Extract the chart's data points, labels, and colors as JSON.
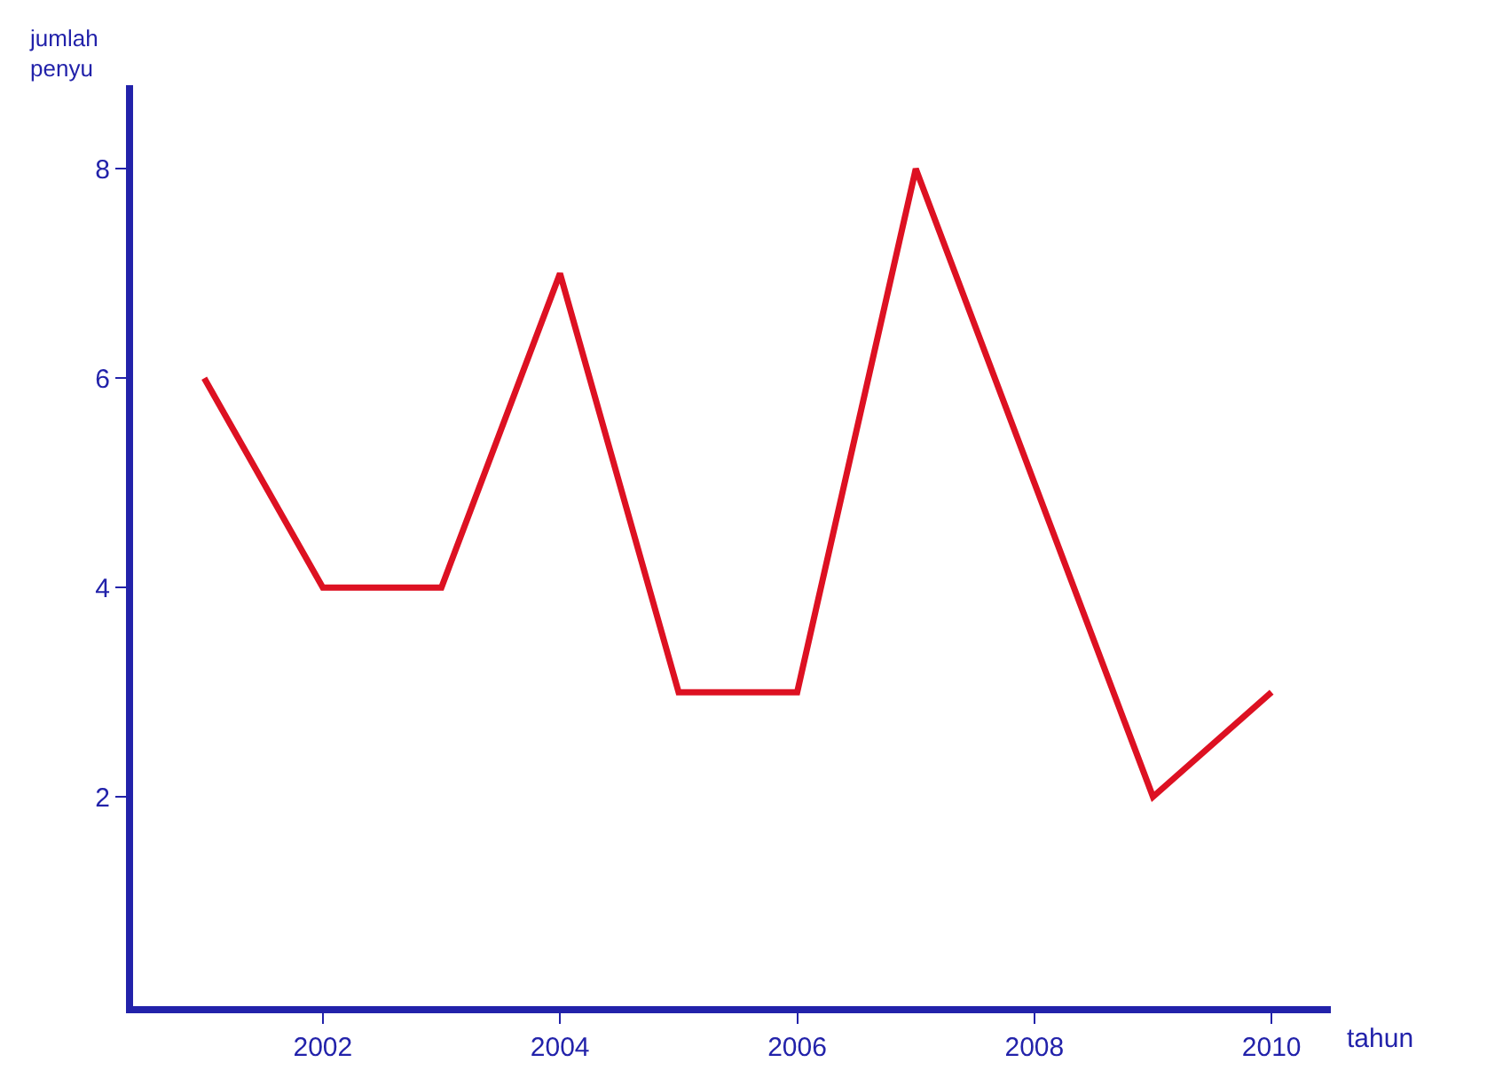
{
  "chart_data": {
    "type": "line",
    "xlabel": "tahun",
    "ylabel": "jumlah\npenyu",
    "x": [
      2001,
      2002,
      2003,
      2004,
      2005,
      2006,
      2007,
      2008,
      2009,
      2010
    ],
    "series": [
      {
        "color": "#dd1122",
        "values": [
          6,
          4,
          4,
          7,
          3,
          3,
          8,
          5,
          2,
          3
        ]
      }
    ],
    "xlim": [
      2000.4,
      2010.5
    ],
    "ylim": [
      0,
      8.8
    ],
    "xticks": [
      2002,
      2004,
      2006,
      2008,
      2010
    ],
    "yticks": [
      2,
      4,
      6,
      8
    ],
    "grid": false,
    "marker": "none",
    "line_style": "solid"
  }
}
